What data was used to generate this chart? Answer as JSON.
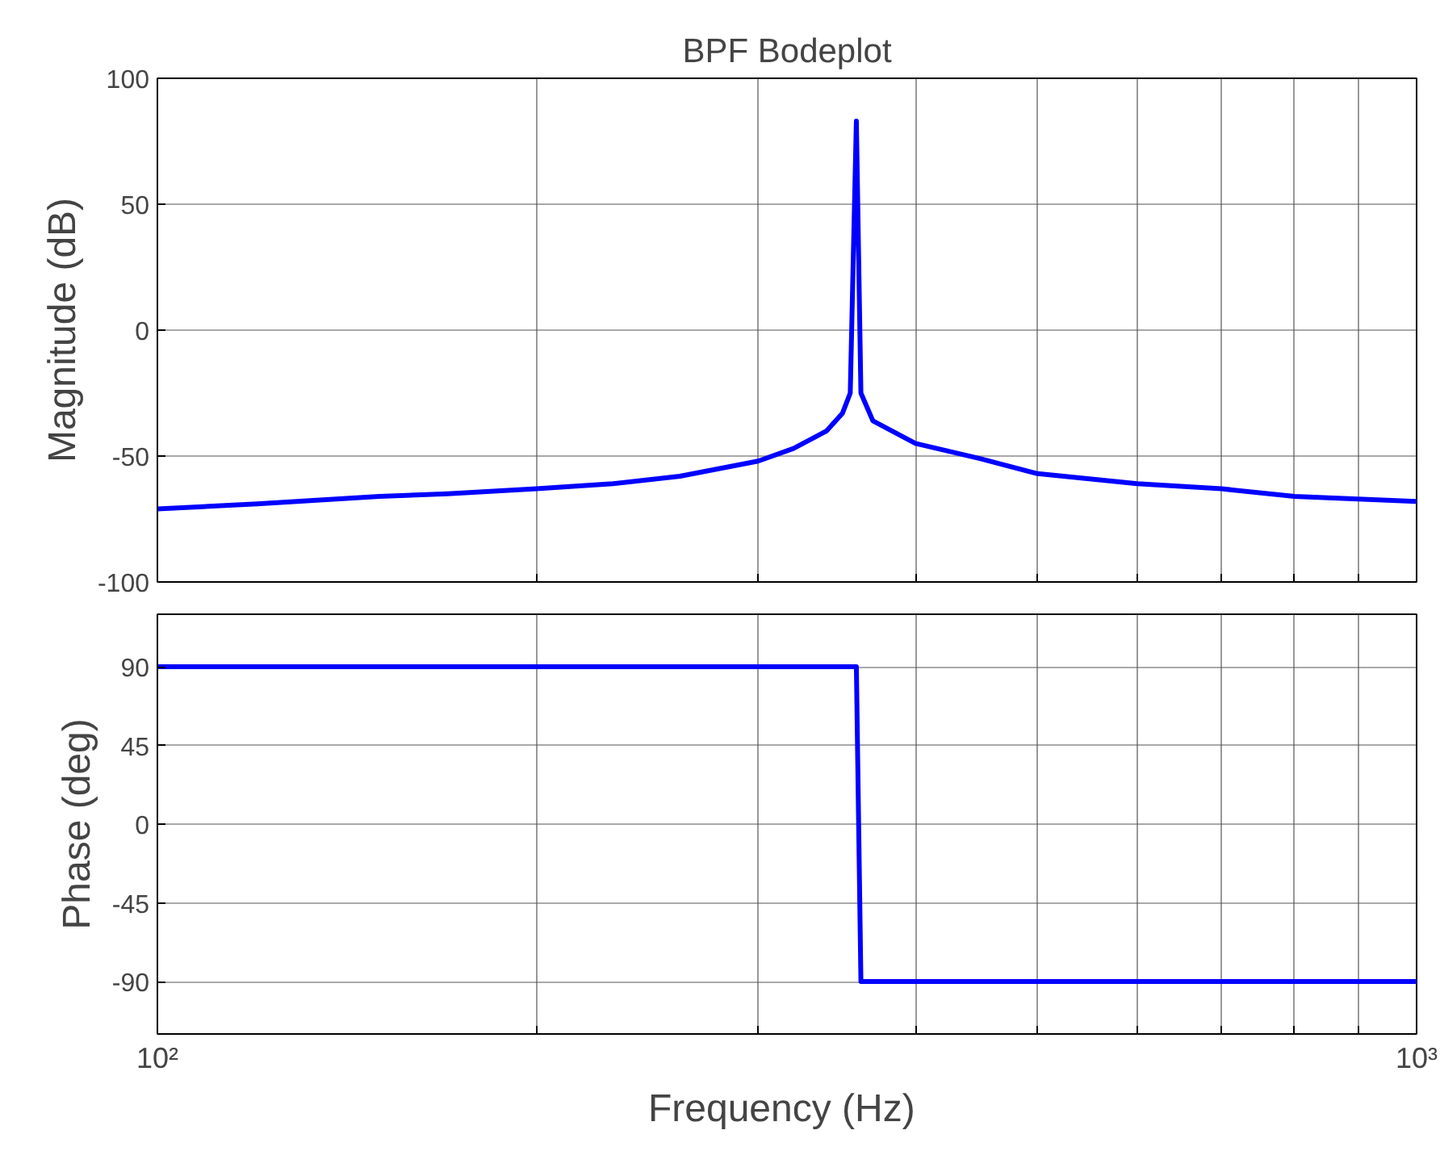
{
  "chart_data": [
    {
      "type": "line",
      "title": "BPF Bodeplot",
      "ylabel": "Magnitude (dB)",
      "log": "x",
      "grid": true,
      "marker": "none",
      "line_style": "solid",
      "tick_labels": "y",
      "xlim": [
        100,
        1000
      ],
      "xticks": [
        {
          "value": 100,
          "label": null
        },
        {
          "value": 200,
          "label": null
        },
        {
          "value": 300,
          "label": null
        },
        {
          "value": 400,
          "label": null
        },
        {
          "value": 500,
          "label": null
        },
        {
          "value": 600,
          "label": null
        },
        {
          "value": 700,
          "label": null
        },
        {
          "value": 800,
          "label": null
        },
        {
          "value": 900,
          "label": null
        },
        {
          "value": 1000,
          "label": null
        }
      ],
      "ylim": [
        -100,
        100
      ],
      "yticks": [
        -100,
        -50,
        0,
        50,
        100
      ],
      "series": [
        {
          "color": "#0000ff",
          "x": [
            100,
            120,
            150,
            170,
            200,
            230,
            260,
            300,
            320,
            340,
            350,
            355,
            359,
            362,
            370,
            400,
            450,
            500,
            600,
            700,
            800,
            1000
          ],
          "values": [
            -71,
            -69,
            -66,
            -65,
            -63,
            -61,
            -58,
            -52,
            -47,
            -40,
            -33,
            -25,
            83,
            -25,
            -36,
            -45,
            -51,
            -57,
            -61,
            -63,
            -66,
            -68
          ]
        }
      ]
    },
    {
      "type": "line",
      "xlabel": "Frequency  (Hz)",
      "ylabel": "Phase (deg)",
      "log": "x",
      "grid": true,
      "marker": "none",
      "line_style": "solid",
      "xlim": [
        100,
        1000
      ],
      "xticks": [
        {
          "value": 100,
          "label": "10²"
        },
        {
          "value": 200,
          "label": null
        },
        {
          "value": 300,
          "label": null
        },
        {
          "value": 400,
          "label": null
        },
        {
          "value": 500,
          "label": null
        },
        {
          "value": 600,
          "label": null
        },
        {
          "value": 700,
          "label": null
        },
        {
          "value": 800,
          "label": null
        },
        {
          "value": 900,
          "label": null
        },
        {
          "value": 1000,
          "label": "10³"
        }
      ],
      "ylim": [
        -120,
        120
      ],
      "yticks": [
        -90,
        -45,
        0,
        45,
        90
      ],
      "series": [
        {
          "color": "#0000ff",
          "x": [
            100,
            359,
            362,
            1000
          ],
          "values": [
            90,
            90,
            -90,
            -90
          ]
        }
      ]
    }
  ]
}
